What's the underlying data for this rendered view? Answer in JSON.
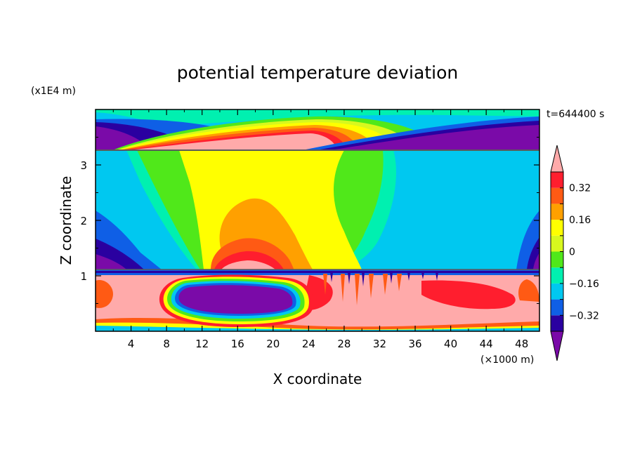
{
  "chart_data": {
    "type": "heatmap",
    "title": "potential temperature deviation",
    "xlabel": "X coordinate",
    "ylabel": "Z coordinate",
    "x_scale_label": "(×1000 m)",
    "y_scale_label": "(x1E4 m)",
    "time_label": "t=644400 s",
    "xlim": [
      0,
      50
    ],
    "ylim": [
      0,
      4
    ],
    "x_ticks": [
      4,
      8,
      12,
      16,
      20,
      24,
      28,
      32,
      36,
      40,
      44,
      48
    ],
    "y_ticks": [
      1,
      2,
      3
    ],
    "colorbar": {
      "levels": [
        -0.4,
        -0.32,
        -0.24,
        -0.16,
        -0.08,
        0,
        0.08,
        0.16,
        0.24,
        0.32,
        0.4
      ],
      "colors": [
        "#7a0aa8",
        "#2a00a0",
        "#0f5fe6",
        "#00c8f0",
        "#00f0b0",
        "#50e81a",
        "#d8f81e",
        "#ffff00",
        "#ffa000",
        "#ff5a14",
        "#ff1e2e",
        "#ffaaaa"
      ],
      "tick_labels": [
        "0.32",
        "0.16",
        "0",
        "−0.16",
        "−0.32"
      ],
      "tick_values": [
        0.32,
        0.16,
        0,
        -0.16,
        -0.32
      ]
    }
  }
}
